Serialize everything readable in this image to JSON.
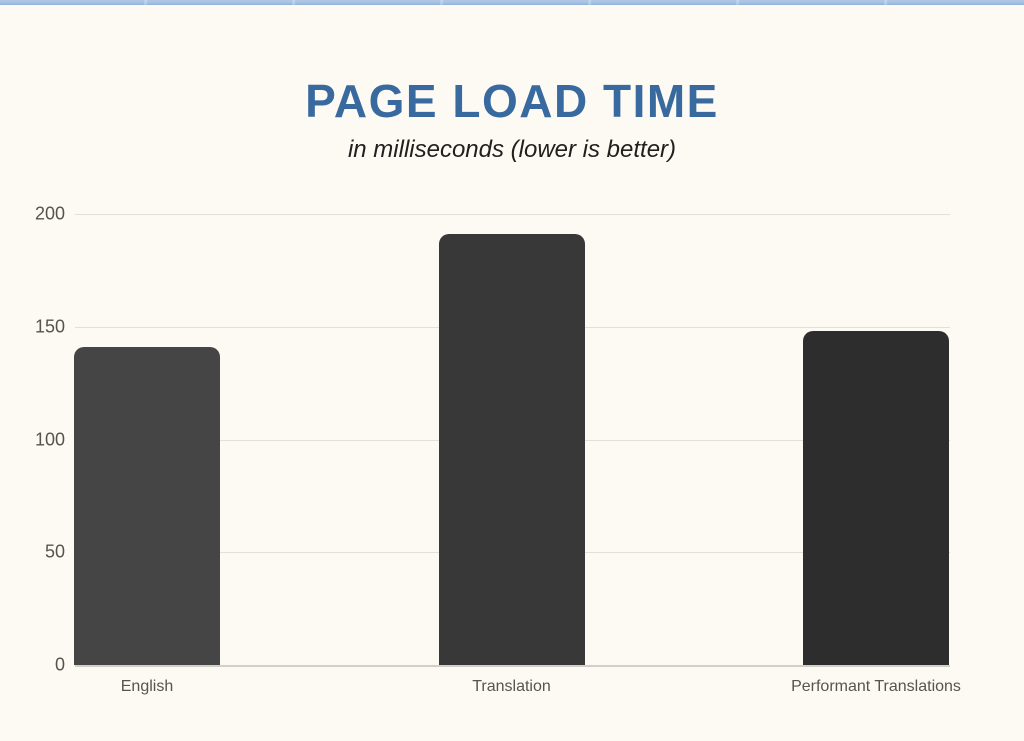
{
  "window": {
    "top_strip_color": "#a5c0e2"
  },
  "chart_data": {
    "type": "bar",
    "title": "PAGE LOAD TIME",
    "subtitle": "in milliseconds (lower is better)",
    "categories": [
      "English",
      "Translation",
      "Performant Translations"
    ],
    "values": [
      141,
      191,
      148
    ],
    "bar_colors": [
      "#454545",
      "#383838",
      "#2d2d2d"
    ],
    "xlabel": "",
    "ylabel": "",
    "ylim": [
      0,
      200
    ],
    "yticks": [
      0,
      50,
      100,
      150,
      200
    ],
    "grid": true,
    "legend": "none",
    "title_color": "#38699f",
    "background_color": "#fdfaf4",
    "gridline_color": "#e3e0d8"
  }
}
